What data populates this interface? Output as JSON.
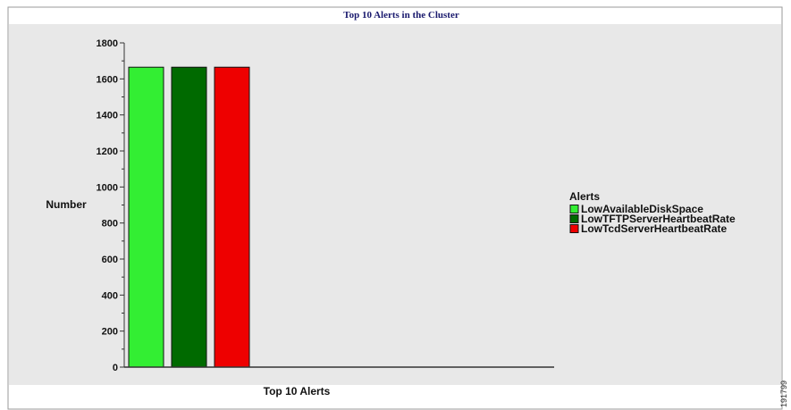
{
  "chart_data": {
    "type": "bar",
    "title": "Top 10 Alerts in the Cluster",
    "xlabel": "Top 10 Alerts",
    "ylabel": "Number",
    "ylim": [
      0,
      1800
    ],
    "yticks": [
      0,
      200,
      400,
      600,
      800,
      1000,
      1200,
      1400,
      1600,
      1800
    ],
    "grid": false,
    "legend_title": "Alerts",
    "legend_position": "right",
    "series": [
      {
        "name": "LowAvailableDiskSpace",
        "value": 1665,
        "color": "#33ee33"
      },
      {
        "name": "LowTFTPServerHeartbeatRate",
        "value": 1665,
        "color": "#006a00"
      },
      {
        "name": "LowTcdServerHeartbeatRate",
        "value": 1665,
        "color": "#ee0000"
      }
    ]
  },
  "side_code": "191799"
}
